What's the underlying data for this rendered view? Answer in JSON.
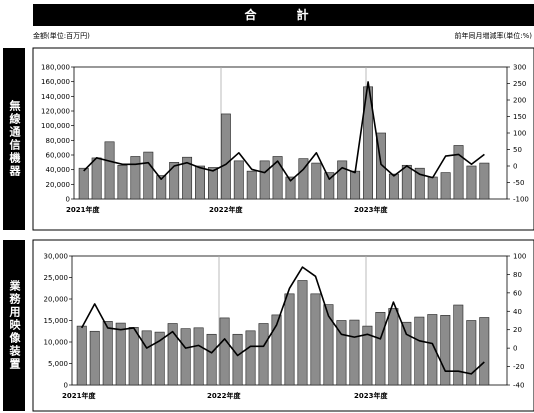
{
  "header": {
    "title": "合　計"
  },
  "units": {
    "left": "金額(単位:百万円)",
    "right": "前年同月増減率(単位:%)"
  },
  "chart_data": [
    {
      "type": "bar",
      "side_label": "無線通信機器",
      "x_labels": [
        "2021年度",
        "2022年度",
        "2023年度"
      ],
      "y_left_ticks": [
        "180,000",
        "160,000",
        "140,000",
        "120,000",
        "100,000",
        "80,000",
        "60,000",
        "40,000",
        "20,000",
        "0"
      ],
      "y_right_ticks": [
        "300",
        "250",
        "200",
        "150",
        "100",
        "50",
        "0",
        "-50",
        "-100"
      ],
      "ylim_left": [
        0,
        180000
      ],
      "ylim_right": [
        -100,
        300
      ],
      "grid": false,
      "series": [
        {
          "axis": "left",
          "kind": "bar",
          "values": [
            42000,
            56000,
            78000,
            46000,
            58000,
            64000,
            32000,
            50000,
            57000,
            45000,
            43000,
            116000,
            52000,
            38000,
            52000,
            58000,
            30000,
            55000,
            49000,
            36000,
            52000,
            38000,
            153000,
            90000,
            34000,
            46000,
            42000,
            30000,
            36000,
            73000,
            45000,
            49000
          ]
        },
        {
          "axis": "right",
          "kind": "line",
          "values": [
            -15,
            25,
            15,
            5,
            5,
            10,
            -40,
            0,
            10,
            -5,
            -15,
            5,
            40,
            -10,
            -20,
            15,
            -45,
            -10,
            40,
            -40,
            -5,
            -20,
            255,
            5,
            -30,
            0,
            -25,
            -35,
            30,
            35,
            5,
            35
          ]
        }
      ]
    },
    {
      "type": "bar",
      "side_label": "業務用映像装置",
      "x_labels": [
        "2021年度",
        "2022年度",
        "2023年度"
      ],
      "y_left_ticks": [
        "30,000",
        "25,000",
        "20,000",
        "15,000",
        "10,000",
        "5,000",
        "0"
      ],
      "y_right_ticks": [
        "100",
        "80",
        "60",
        "40",
        "20",
        "0",
        "-20",
        "-40"
      ],
      "ylim_left": [
        0,
        30000
      ],
      "ylim_right": [
        -40,
        100
      ],
      "grid": false,
      "series": [
        {
          "axis": "left",
          "kind": "bar",
          "values": [
            13700,
            12500,
            14800,
            14400,
            13400,
            12600,
            12300,
            14300,
            13100,
            13300,
            11800,
            15600,
            11800,
            12600,
            14300,
            16300,
            21200,
            24300,
            21200,
            18700,
            15000,
            15100,
            13700,
            16900,
            17800,
            14600,
            15800,
            16400,
            16200,
            18600,
            15000,
            15700
          ]
        },
        {
          "axis": "right",
          "kind": "line",
          "values": [
            22,
            48,
            22,
            20,
            22,
            0,
            8,
            18,
            0,
            3,
            -5,
            10,
            -8,
            2,
            2,
            25,
            65,
            88,
            78,
            35,
            15,
            12,
            15,
            10,
            50,
            15,
            8,
            5,
            -25,
            -25,
            -28,
            -15
          ]
        }
      ]
    }
  ]
}
